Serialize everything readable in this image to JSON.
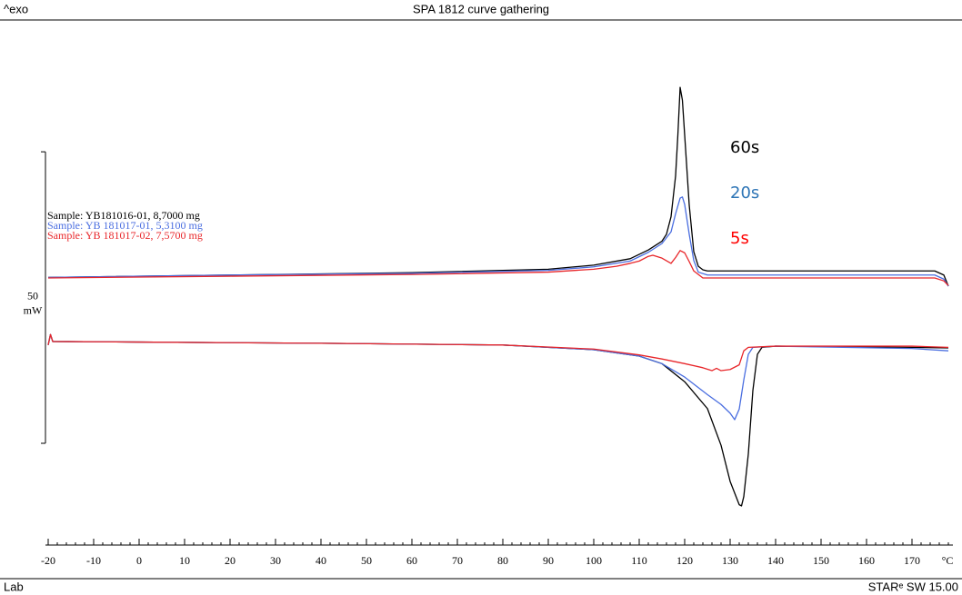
{
  "chart_data": {
    "type": "line",
    "title": "SPA 1812 curve gathering",
    "header_left": "^exo",
    "footer_left": "Lab",
    "footer_right": "STARᵉ SW 15.00",
    "x_label": "°C",
    "xlim": [
      -20.6,
      179
    ],
    "xticks": [
      -20,
      -10,
      0,
      10,
      20,
      30,
      40,
      50,
      60,
      70,
      80,
      90,
      100,
      110,
      120,
      130,
      140,
      150,
      160,
      170
    ],
    "minor_tick_step": 2,
    "ylim": [
      0,
      88.5
    ],
    "scale_bar": {
      "value": 50,
      "unit": "mW"
    },
    "series": [
      {
        "name": "Sample: YB181016-01, 8,7000 mg",
        "color": "#000000",
        "heating": {
          "x": [
            -20,
            20,
            60,
            90,
            100,
            108,
            112,
            115,
            116,
            117,
            118,
            118.5,
            119,
            119.5,
            120,
            121,
            122,
            123,
            124,
            125,
            175,
            177,
            178
          ],
          "values": [
            45.6,
            46.0,
            46.4,
            47.0,
            47.7,
            48.8,
            50.3,
            51.8,
            53.0,
            56.0,
            63.0,
            70.0,
            78.2,
            76.0,
            70.0,
            58.0,
            50.0,
            47.5,
            46.9,
            46.7,
            46.7,
            46.0,
            44.1
          ]
        },
        "cooling": {
          "x": [
            -20,
            -19.5,
            -19,
            0,
            40,
            80,
            100,
            110,
            115,
            120,
            125,
            128,
            130,
            132,
            132.5,
            133,
            134,
            135,
            136,
            137,
            140,
            170,
            178
          ],
          "values": [
            34.0,
            35.8,
            34.6,
            34.5,
            34.3,
            34.0,
            33.2,
            32.1,
            30.8,
            27.7,
            23.1,
            16.8,
            10.6,
            6.6,
            6.4,
            8.0,
            15.3,
            26.2,
            32.4,
            33.6,
            33.8,
            33.6,
            33.5
          ]
        }
      },
      {
        "name": "Sample: YB 181017-01, 5,3100 mg",
        "color": "#4a6ee0",
        "heating": {
          "x": [
            -20,
            20,
            60,
            90,
            100,
            108,
            112,
            115,
            117,
            118,
            119,
            119.5,
            120,
            121,
            122,
            123,
            125,
            175,
            177,
            178
          ],
          "values": [
            45.6,
            46.0,
            46.3,
            46.8,
            47.4,
            48.4,
            49.9,
            51.4,
            53.4,
            56.5,
            59.2,
            59.4,
            58.1,
            53.0,
            48.5,
            46.5,
            46.0,
            46.0,
            45.3,
            44.1
          ]
        },
        "cooling": {
          "x": [
            -20,
            -19.5,
            -19,
            0,
            40,
            80,
            100,
            110,
            115,
            120,
            125,
            128,
            130,
            131,
            132,
            133,
            134,
            135,
            140,
            170,
            178
          ],
          "values": [
            34.0,
            35.8,
            34.6,
            34.5,
            34.3,
            34.0,
            33.2,
            32.1,
            30.8,
            28.5,
            25.5,
            23.8,
            22.3,
            21.2,
            23.0,
            28.0,
            32.4,
            33.6,
            33.8,
            33.4,
            33.0
          ]
        }
      },
      {
        "name": "Sample: YB 181017-02, 7,5700 mg",
        "color": "#e8262a",
        "heating": {
          "x": [
            -20,
            20,
            60,
            90,
            100,
            105,
            108,
            110,
            112,
            113,
            115,
            117,
            118,
            119,
            120,
            121,
            122,
            124,
            175,
            177,
            178
          ],
          "values": [
            45.5,
            45.8,
            46.1,
            46.5,
            47.0,
            47.5,
            48.0,
            48.4,
            49.2,
            49.4,
            48.9,
            48.0,
            49.0,
            50.2,
            49.8,
            48.3,
            46.7,
            45.5,
            45.5,
            45.0,
            44.2
          ]
        },
        "cooling": {
          "x": [
            -20,
            -19.5,
            -19,
            0,
            40,
            80,
            100,
            110,
            115,
            120,
            124,
            126,
            127,
            128,
            130,
            132,
            133,
            134,
            140,
            170,
            178
          ],
          "values": [
            34.0,
            35.8,
            34.6,
            34.5,
            34.3,
            34.0,
            33.3,
            32.3,
            31.6,
            30.8,
            30.1,
            29.6,
            30.0,
            29.6,
            29.8,
            30.6,
            33.0,
            33.6,
            33.8,
            33.8,
            33.6
          ]
        }
      }
    ],
    "annotations": [
      {
        "text": "60s",
        "color": "#000000"
      },
      {
        "text": "20s",
        "color": "#2e75b6"
      },
      {
        "text": "5s",
        "color": "#ff0000"
      }
    ]
  }
}
